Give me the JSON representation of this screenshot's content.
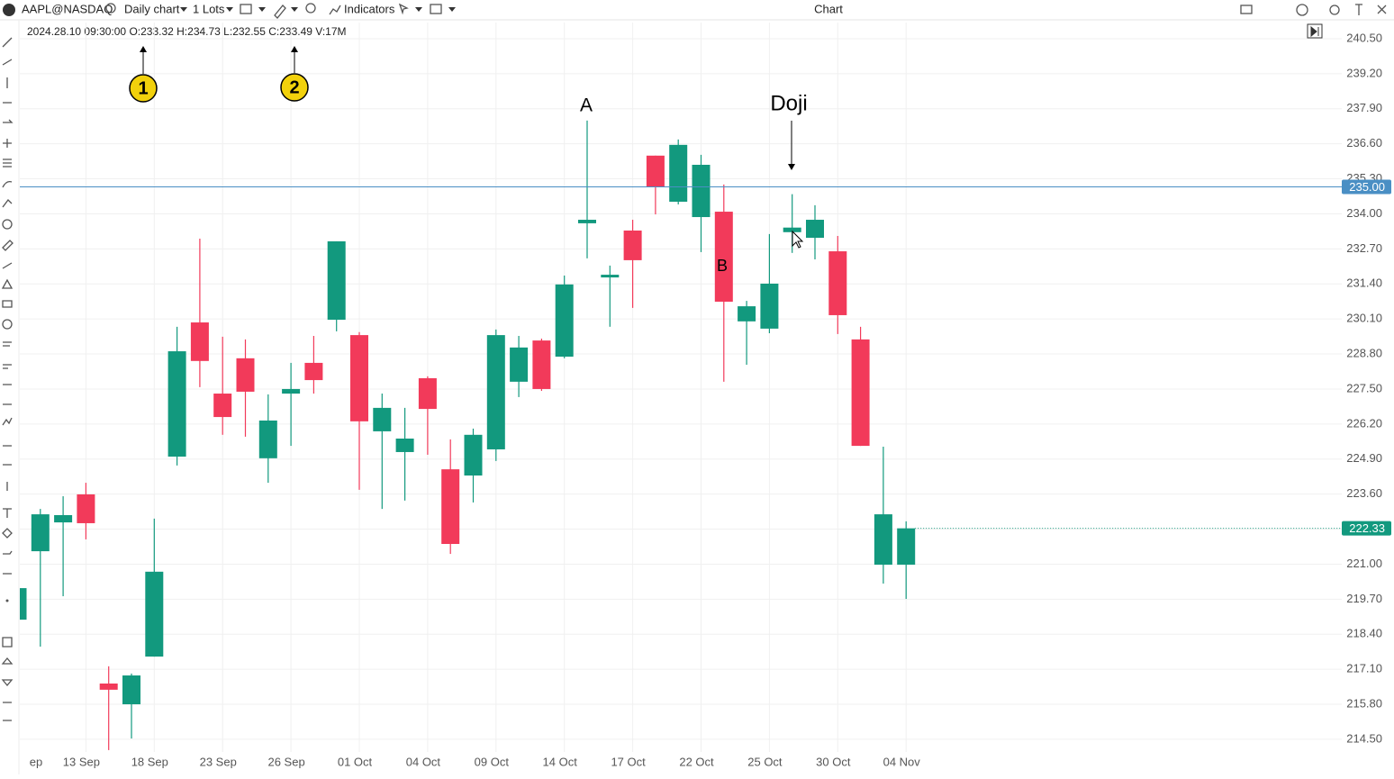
{
  "toolbar": {
    "symbol": "AAPL@NASDAQ",
    "timeframe": "Daily chart",
    "lots": "1 Lots",
    "indicators": "Indicators",
    "window_title": "Chart"
  },
  "info_bar": "2024.28.10 09:30:00 O:233.32 H:234.73 L:232.55 C:233.49 V:17M",
  "annotations": {
    "a": "A",
    "b": "B",
    "doji": "Doji",
    "marker_1": "1",
    "marker_2": "2"
  },
  "chart_data": {
    "type": "candlestick",
    "categories": [
      "ep",
      null,
      null,
      "13 Sep",
      null,
      null,
      "18 Sep",
      null,
      null,
      "23 Sep",
      null,
      null,
      "26 Sep",
      null,
      null,
      "01 Oct",
      null,
      null,
      "04 Oct",
      null,
      null,
      "09 Oct",
      null,
      null,
      "14 Oct",
      null,
      null,
      "17 Oct",
      null,
      null,
      "22 Oct",
      null,
      null,
      "25 Oct",
      null,
      null,
      "30 Oct",
      null,
      null,
      "04 Nov"
    ],
    "open": [
      218.94,
      221.48,
      222.55,
      223.59,
      216.57,
      215.8,
      217.57,
      224.99,
      229.97,
      227.33,
      228.64,
      224.93,
      227.33,
      228.47,
      230.07,
      229.5,
      225.93,
      225.16,
      227.9,
      224.52,
      224.29,
      225.26,
      227.77,
      229.3,
      228.7,
      233.65,
      231.64,
      233.38,
      236.16,
      234.45,
      233.88,
      234.08,
      230.01,
      229.74,
      233.32,
      233.11,
      232.61,
      229.34,
      220.98,
      220.98
    ],
    "high": [
      220.2,
      223.05,
      223.52,
      224.02,
      217.21,
      216.94,
      222.69,
      229.81,
      233.08,
      229.44,
      229.34,
      227.3,
      228.47,
      229.47,
      232.98,
      229.61,
      227.33,
      226.8,
      227.97,
      225.63,
      226.03,
      229.71,
      229.47,
      229.37,
      231.71,
      237.46,
      232.08,
      233.78,
      236.16,
      236.76,
      236.19,
      235.09,
      230.77,
      233.25,
      234.73,
      234.32,
      233.18,
      229.81,
      225.36,
      222.59
    ],
    "low": [
      218.8,
      217.94,
      219.81,
      221.92,
      214.1,
      214.53,
      217.57,
      224.66,
      227.57,
      225.8,
      225.73,
      224.02,
      225.39,
      227.33,
      229.64,
      223.76,
      223.05,
      223.36,
      225.06,
      221.38,
      223.29,
      224.83,
      227.2,
      227.43,
      228.64,
      232.35,
      229.81,
      230.51,
      233.98,
      234.35,
      232.58,
      227.77,
      228.4,
      229.57,
      232.55,
      232.31,
      229.54,
      225.39,
      220.28,
      219.71
    ],
    "close": [
      220.11,
      222.85,
      222.82,
      222.52,
      216.34,
      216.87,
      220.72,
      228.9,
      228.54,
      226.46,
      227.4,
      226.33,
      227.5,
      227.83,
      232.98,
      226.3,
      226.8,
      225.66,
      226.76,
      221.75,
      225.8,
      229.5,
      229.04,
      227.5,
      231.38,
      233.78,
      231.74,
      232.28,
      234.99,
      236.56,
      235.82,
      230.74,
      230.57,
      231.41,
      233.49,
      233.78,
      230.24,
      225.39,
      222.85,
      222.33
    ],
    "up_color": "#12997e",
    "down_color": "#f23a5a",
    "ylim": [
      214.03,
      241.1
    ],
    "yticks": [
      {
        "value": 240.5,
        "label": "240.50"
      },
      {
        "value": 239.2,
        "label": "239.20"
      },
      {
        "value": 237.9,
        "label": "237.90"
      },
      {
        "value": 236.6,
        "label": "236.60"
      },
      {
        "value": 235.3,
        "label": "235.30"
      },
      {
        "value": 234.0,
        "label": "234.00"
      },
      {
        "value": 232.7,
        "label": "232.70"
      },
      {
        "value": 231.4,
        "label": "231.40"
      },
      {
        "value": 230.1,
        "label": "230.10"
      },
      {
        "value": 228.8,
        "label": "228.80"
      },
      {
        "value": 227.5,
        "label": "227.50"
      },
      {
        "value": 226.2,
        "label": "226.20"
      },
      {
        "value": 224.9,
        "label": "224.90"
      },
      {
        "value": 223.6,
        "label": "223.60"
      },
      {
        "value": 222.3,
        "label": "222.30"
      },
      {
        "value": 221.0,
        "label": "221.00"
      },
      {
        "value": 219.7,
        "label": "219.70"
      },
      {
        "value": 218.4,
        "label": "218.40"
      },
      {
        "value": 217.1,
        "label": "217.10"
      },
      {
        "value": 215.8,
        "label": "215.80"
      },
      {
        "value": 214.5,
        "label": "214.50"
      }
    ],
    "hline": {
      "value": 235.0,
      "label": "235.00",
      "color": "#4a8fc4"
    },
    "last_price": {
      "value": 222.33,
      "label": "222.33",
      "color": "#12997e"
    },
    "grid": true
  }
}
